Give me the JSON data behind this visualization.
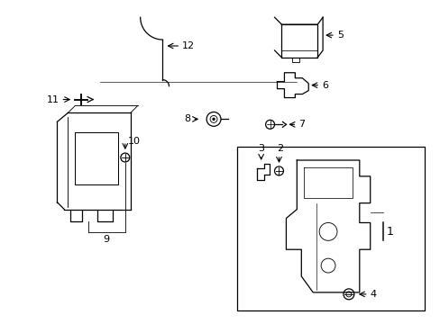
{
  "bg_color": "#ffffff",
  "line_color": "#000000",
  "figsize": [
    4.89,
    3.6
  ],
  "dpi": 100,
  "lw": 0.9,
  "fontsize": 8
}
